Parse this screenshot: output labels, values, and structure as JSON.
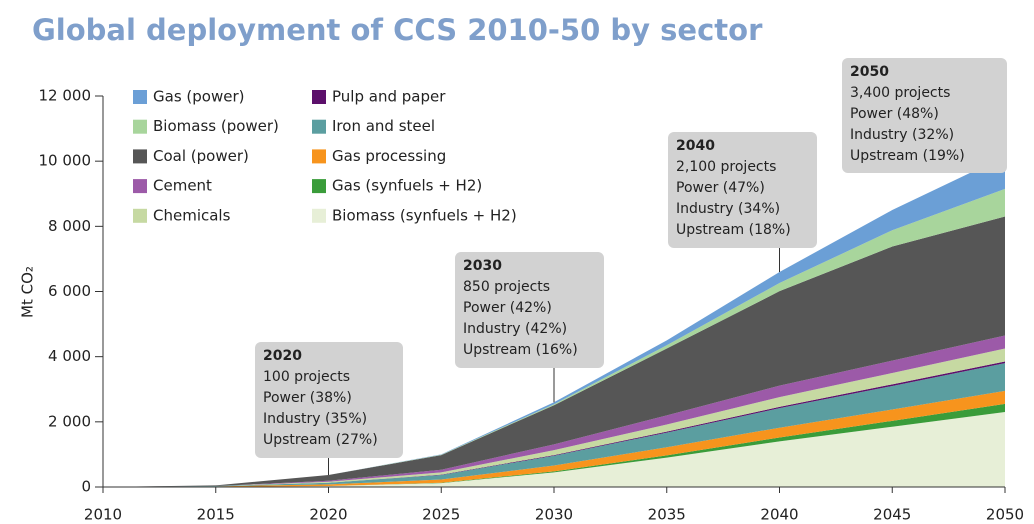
{
  "chart_data": {
    "type": "stacked_area",
    "title": "Global deployment of CCS 2010-50 by sector",
    "y_label": "Mt CO₂",
    "x": [
      2010,
      2015,
      2020,
      2025,
      2030,
      2035,
      2040,
      2045,
      2050
    ],
    "xlim": [
      2010,
      2050
    ],
    "xticks": [
      2010,
      2015,
      2020,
      2025,
      2030,
      2035,
      2040,
      2045,
      2050
    ],
    "ylim": [
      0,
      12000
    ],
    "yticks": [
      0,
      {
        "value": 2000,
        "label": "2 000"
      },
      {
        "value": 4000,
        "label": "4 000"
      },
      {
        "value": 6000,
        "label": "6 000"
      },
      {
        "value": 8000,
        "label": "8 000"
      },
      {
        "value": 10000,
        "label": "10 000"
      },
      {
        "value": 12000,
        "label": "12 000"
      }
    ],
    "series": [
      {
        "name": "Gas (power)",
        "color": "#6b9fd6",
        "values": [
          0,
          0,
          0,
          10,
          60,
          150,
          340,
          620,
          1000
        ]
      },
      {
        "name": "Biomass (power)",
        "color": "#a8d59c",
        "values": [
          0,
          0,
          0,
          10,
          30,
          100,
          250,
          500,
          850
        ]
      },
      {
        "name": "Coal (power)",
        "color": "#565656",
        "values": [
          0,
          20,
          180,
          450,
          1200,
          2050,
          2900,
          3500,
          3650
        ]
      },
      {
        "name": "Cement",
        "color": "#9c5aa8",
        "values": [
          0,
          0,
          30,
          80,
          180,
          280,
          350,
          380,
          400
        ]
      },
      {
        "name": "Chemicals",
        "color": "#c6d9a2",
        "values": [
          0,
          0,
          30,
          70,
          150,
          220,
          300,
          350,
          400
        ]
      },
      {
        "name": "Pulp and paper",
        "color": "#5c0f6b",
        "values": [
          0,
          0,
          0,
          10,
          20,
          30,
          40,
          50,
          50
        ]
      },
      {
        "name": "Iron and steel",
        "color": "#5b9ea0",
        "values": [
          0,
          10,
          50,
          140,
          300,
          450,
          600,
          720,
          850
        ]
      },
      {
        "name": "Gas processing",
        "color": "#f7941d",
        "values": [
          0,
          20,
          50,
          100,
          180,
          250,
          300,
          350,
          400
        ]
      },
      {
        "name": "Gas (synfuels + H2)",
        "color": "#3a9c3a",
        "values": [
          0,
          0,
          0,
          10,
          30,
          70,
          120,
          180,
          250
        ]
      },
      {
        "name": "Biomass (synfuels + H2)",
        "color": "#e7efd7",
        "values": [
          0,
          0,
          30,
          120,
          450,
          900,
          1400,
          1850,
          2300
        ]
      }
    ],
    "annotations": [
      {
        "x": 2020,
        "lines": [
          "100 projects",
          "Power (38%)",
          "Industry (35%)",
          "Upstream (27%)"
        ]
      },
      {
        "x": 2030,
        "lines": [
          "850 projects",
          "Power (42%)",
          "Industry (42%)",
          "Upstream (16%)"
        ]
      },
      {
        "x": 2040,
        "lines": [
          "2,100 projects",
          "Power (47%)",
          "Industry (34%)",
          "Upstream (18%)"
        ]
      },
      {
        "x": 2050,
        "lines": [
          "3,400 projects",
          "Power (48%)",
          "Industry (32%)",
          "Upstream (19%)"
        ]
      }
    ]
  }
}
